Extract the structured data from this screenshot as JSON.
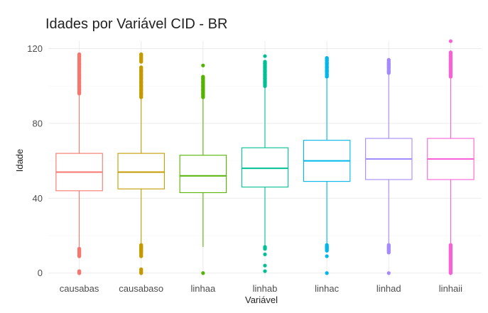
{
  "chart_data": {
    "type": "boxplot",
    "title": "Idades por Variável CID - BR",
    "xlabel": "Variável",
    "ylabel": "Idade",
    "ylim": [
      -2,
      124
    ],
    "yticks": [
      0,
      40,
      80,
      120
    ],
    "grid": true,
    "legend": "none",
    "categories": [
      "causabas",
      "causabaso",
      "linhaa",
      "linhab",
      "linhac",
      "linhad",
      "linhaii"
    ],
    "series": [
      {
        "category": "causabas",
        "color": "#F8766D",
        "whisker_low": 14,
        "q1": 44,
        "median": 54,
        "q3": 64,
        "whisker_high": 95,
        "outliers_low": [
          0,
          1,
          9,
          10,
          11,
          12,
          13
        ],
        "outliers_high": [
          96,
          98,
          100,
          102,
          104,
          106,
          108,
          110,
          112,
          114,
          116,
          117
        ]
      },
      {
        "category": "causabaso",
        "color": "#C49A00",
        "whisker_low": 16,
        "q1": 45,
        "median": 54,
        "q3": 64,
        "whisker_high": 93,
        "outliers_low": [
          0,
          2,
          9,
          11,
          12,
          13,
          14,
          15
        ],
        "outliers_high": [
          94,
          96,
          98,
          100,
          102,
          104,
          106,
          108,
          110,
          113,
          115,
          117
        ]
      },
      {
        "category": "linhaa",
        "color": "#53B400",
        "whisker_low": 14,
        "q1": 43,
        "median": 52,
        "q3": 63,
        "whisker_high": 93,
        "outliers_low": [
          0
        ],
        "outliers_high": [
          94,
          96,
          98,
          100,
          102,
          104,
          105,
          111
        ]
      },
      {
        "category": "linhab",
        "color": "#00C094",
        "whisker_low": 15,
        "q1": 46,
        "median": 56,
        "q3": 67,
        "whisker_high": 99,
        "outliers_low": [
          1,
          4,
          10,
          13,
          14
        ],
        "outliers_high": [
          100,
          102,
          104,
          106,
          108,
          110,
          112,
          113,
          116
        ]
      },
      {
        "category": "linhac",
        "color": "#00B6EB",
        "whisker_low": 16,
        "q1": 49,
        "median": 60,
        "q3": 71,
        "whisker_high": 104,
        "outliers_low": [
          0,
          9,
          12,
          13,
          14,
          15
        ],
        "outliers_high": [
          105,
          106,
          108,
          110,
          112,
          114,
          115
        ]
      },
      {
        "category": "linhad",
        "color": "#A58AFF",
        "whisker_low": 16,
        "q1": 50,
        "median": 61,
        "q3": 72,
        "whisker_high": 106,
        "outliers_low": [
          0,
          11,
          12,
          13,
          14,
          15
        ],
        "outliers_high": [
          107,
          108,
          110,
          111,
          112,
          114
        ]
      },
      {
        "category": "linhaii",
        "color": "#FB61D7",
        "whisker_low": 16,
        "q1": 50,
        "median": 61,
        "q3": 72,
        "whisker_high": 104,
        "outliers_low": [
          0,
          1,
          2,
          4,
          5,
          6,
          7,
          8,
          9,
          10,
          11,
          12,
          13,
          14,
          15
        ],
        "outliers_high": [
          105,
          106,
          108,
          110,
          112,
          114,
          116,
          118,
          124
        ]
      }
    ]
  }
}
